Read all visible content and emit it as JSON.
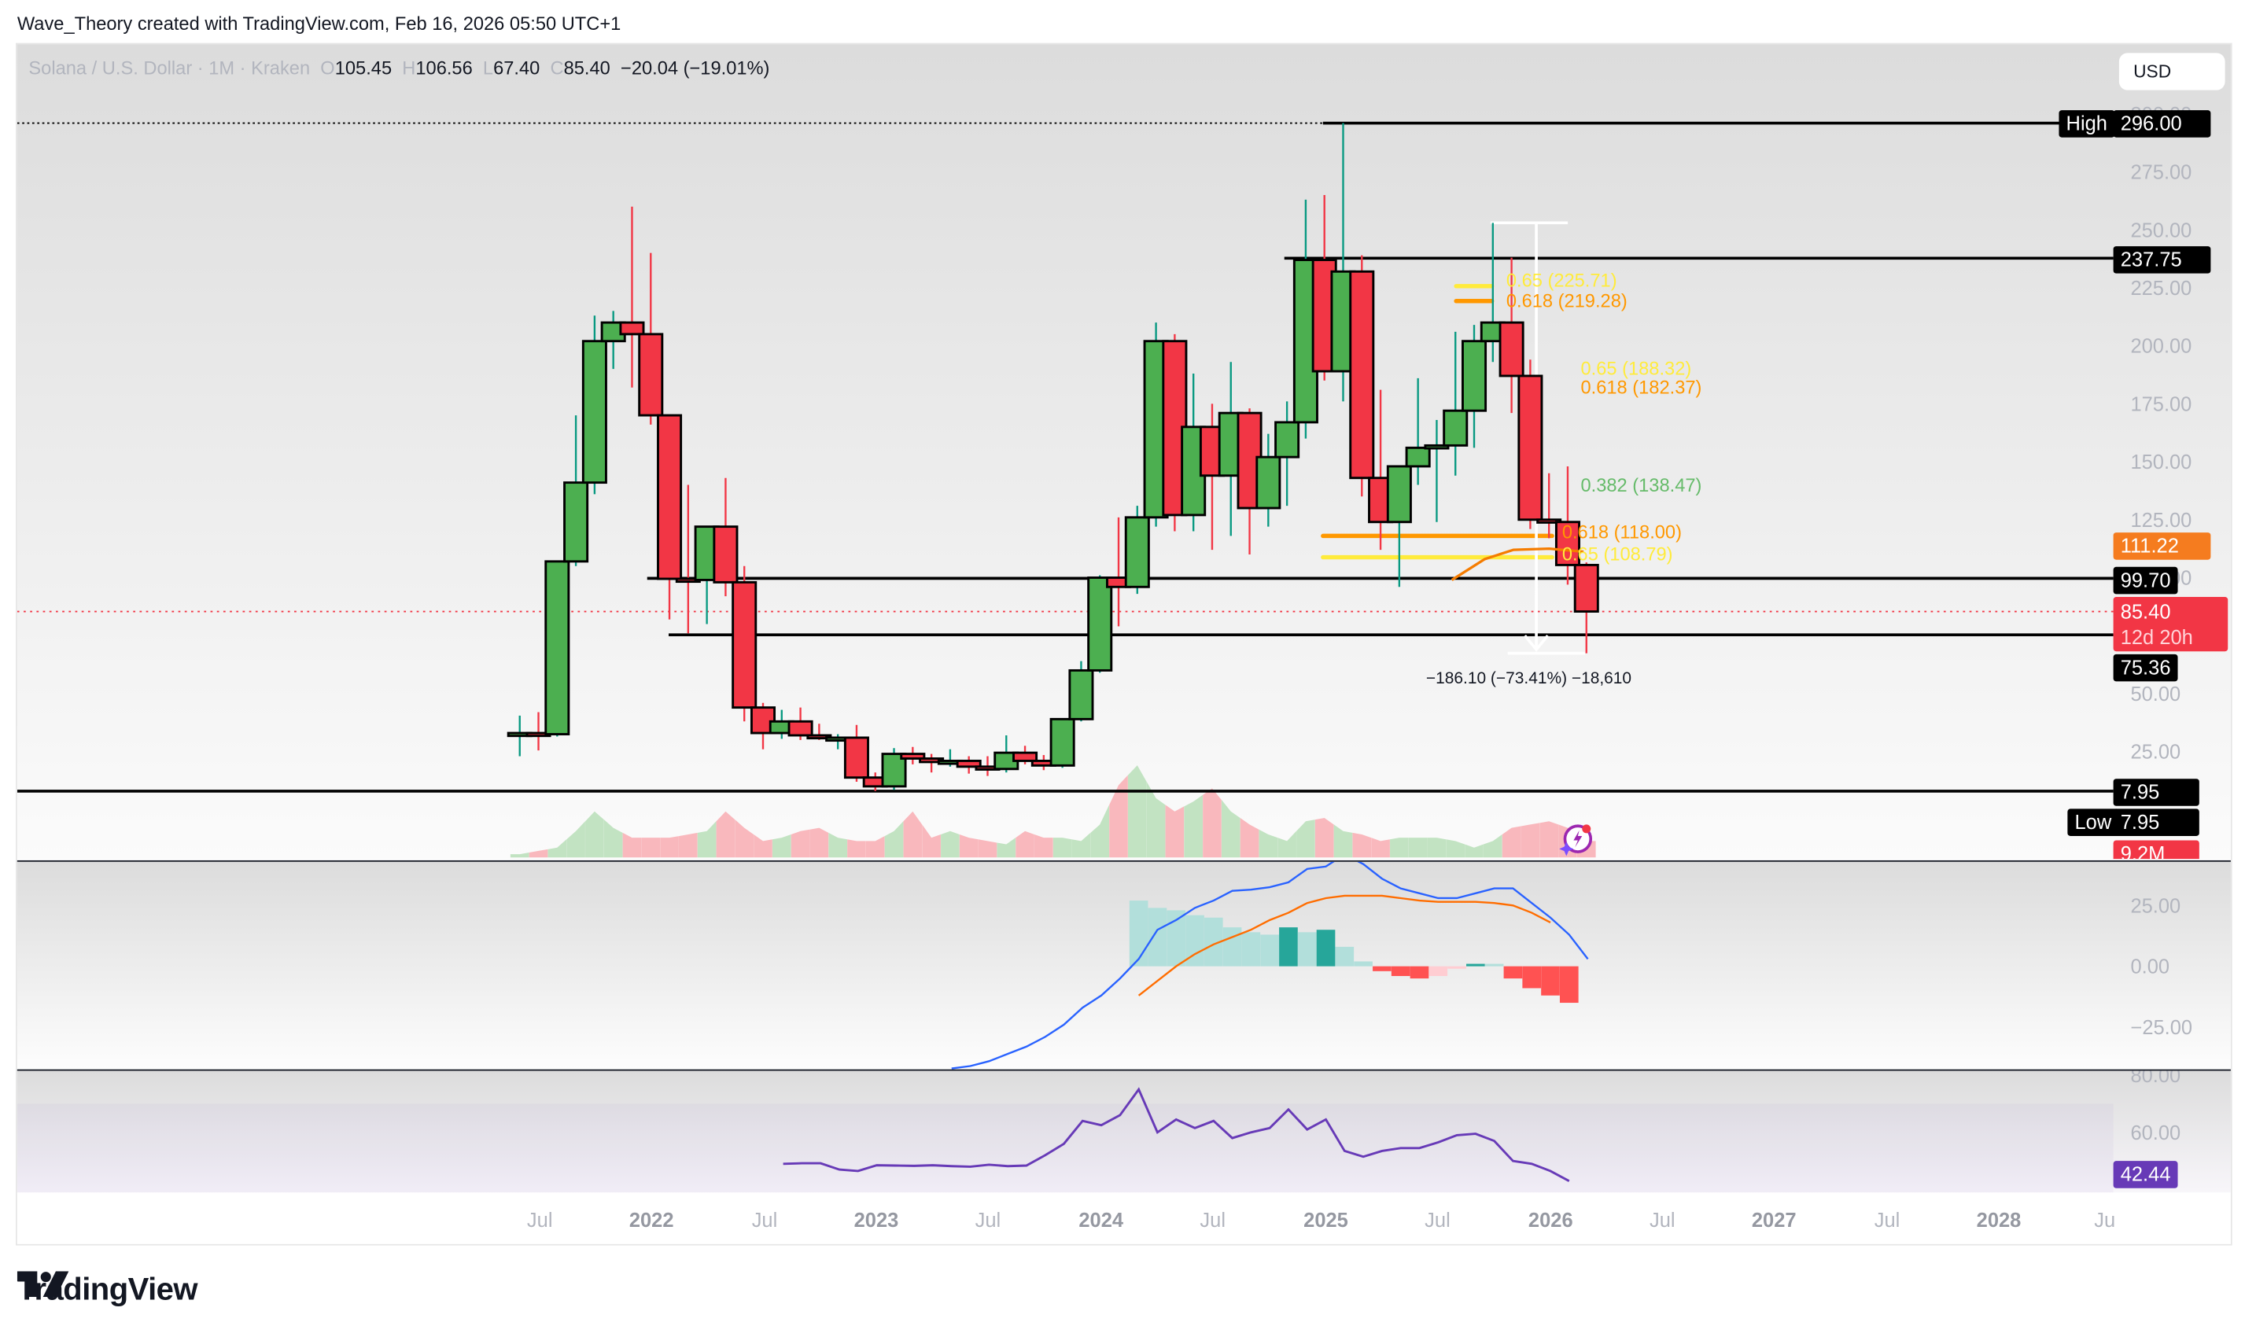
{
  "attribution": "Wave_Theory created with TradingView.com, Feb 16, 2026 05:50 UTC+1",
  "legend": {
    "symbol": "Solana / U.S. Dollar · 1M · Kraken",
    "o_label": "O",
    "o": "105.45",
    "h_label": "H",
    "h": "106.56",
    "l_label": "L",
    "l": "67.40",
    "c_label": "C",
    "c": "85.40",
    "change": "−20.04 (−19.01%)"
  },
  "currency_button": "USD",
  "price_axis": {
    "ticks": [
      "300.00",
      "275.00",
      "250.00",
      "225.00",
      "200.00",
      "175.00",
      "150.00",
      "125.00",
      "100.00",
      "75.00",
      "50.00",
      "25.00"
    ]
  },
  "price_badges": {
    "high_label": "High",
    "high_value": "296.00",
    "level_237": "237.75",
    "ema_value": "111.22",
    "level_99": "99.70",
    "last_price": "85.40",
    "countdown": "12d 20h",
    "level_75": "75.36",
    "level_7": "7.95",
    "low_label": "Low",
    "low_value": "7.95",
    "volume": "9.2M"
  },
  "fib_labels": {
    "upper_065": "0.65 (225.71)",
    "upper_0618": "0.618 (219.28)",
    "mid_065": "0.65 (188.32)",
    "mid_0618": "0.618 (182.37)",
    "fib_0382": "0.382 (138.47)",
    "lower_0618": "0.618 (118.00)",
    "lower_065": "0.65 (108.79)"
  },
  "measure_label": "−186.10 (−73.41%) −18,610",
  "macd_axis": {
    "ticks": [
      "25.00",
      "0.00",
      "−25.00"
    ]
  },
  "rsi_axis": {
    "ticks": [
      "80.00",
      "60.00"
    ],
    "value": "42.44"
  },
  "time_axis": {
    "labels": [
      {
        "text": "Jul",
        "year": false
      },
      {
        "text": "2022",
        "year": true
      },
      {
        "text": "Jul",
        "year": false
      },
      {
        "text": "2023",
        "year": true
      },
      {
        "text": "Jul",
        "year": false
      },
      {
        "text": "2024",
        "year": true
      },
      {
        "text": "Jul",
        "year": false
      },
      {
        "text": "2025",
        "year": true
      },
      {
        "text": "Jul",
        "year": false
      },
      {
        "text": "2026",
        "year": true
      },
      {
        "text": "Jul",
        "year": false
      },
      {
        "text": "2027",
        "year": true
      },
      {
        "text": "Jul",
        "year": false
      },
      {
        "text": "2028",
        "year": true
      },
      {
        "text": "Ju",
        "year": false
      }
    ]
  },
  "logo_text": "TradingView",
  "colors": {
    "up": "#4caf50",
    "down": "#f23645",
    "up_wick": "#089981",
    "down_wick": "#f23645",
    "fib_orange": "#ff9800",
    "fib_yellow": "#ffeb3b",
    "fib_green": "#66bb6a",
    "ema": "#f57c00",
    "macd": "#2962ff",
    "signal": "#ff6d00",
    "rsi": "#673ab7",
    "last_price": "#f23645",
    "ema_badge": "#f57c1f"
  },
  "chart_data": {
    "type": "candlestick",
    "title": "Solana / U.S. Dollar · 1M · Kraken",
    "xlabel": "",
    "ylabel": "USD",
    "ylim": [
      0,
      300
    ],
    "x_start": "2021-06",
    "interval": "1M",
    "candles": [
      [
        32.5,
        40.5,
        23.0,
        33.0
      ],
      [
        33.0,
        42.0,
        25.5,
        32.5
      ],
      [
        32.5,
        70.0,
        31.5,
        107.0
      ],
      [
        107.0,
        170.0,
        105.0,
        141.0
      ],
      [
        141.0,
        213.0,
        136.0,
        202.0
      ],
      [
        202.0,
        215.0,
        190.0,
        210.0
      ],
      [
        210.0,
        260.0,
        182.0,
        205.0
      ],
      [
        205.0,
        240.0,
        166.0,
        170.0
      ],
      [
        170.0,
        160.0,
        82.0,
        99.5
      ],
      [
        99.5,
        140.0,
        76.0,
        99.0
      ],
      [
        99.0,
        120.0,
        80.0,
        122.0
      ],
      [
        122.0,
        143.0,
        92.0,
        98.0
      ],
      [
        98.0,
        105.0,
        38.0,
        44.0
      ],
      [
        44.0,
        46.0,
        26.0,
        33.0
      ],
      [
        33.0,
        43.0,
        30.5,
        38.0
      ],
      [
        38.0,
        44.0,
        30.0,
        32.0
      ],
      [
        32.0,
        37.0,
        30.0,
        30.8
      ],
      [
        30.8,
        32.5,
        26.0,
        31.0
      ],
      [
        31.0,
        36.5,
        12.0,
        13.8
      ],
      [
        13.8,
        16.0,
        8.0,
        10.0
      ],
      [
        10.0,
        26.5,
        8.5,
        24.0
      ],
      [
        24.0,
        27.0,
        19.5,
        22.0
      ],
      [
        22.0,
        24.0,
        16.0,
        20.5
      ],
      [
        20.5,
        26.0,
        18.5,
        21.0
      ],
      [
        21.0,
        23.0,
        15.5,
        18.5
      ],
      [
        18.5,
        23.0,
        14.5,
        17.5
      ],
      [
        17.5,
        32.0,
        16.0,
        24.5
      ],
      [
        24.5,
        27.5,
        19.5,
        21.0
      ],
      [
        21.0,
        23.5,
        17.0,
        19.0
      ],
      [
        19.0,
        35.0,
        18.0,
        39.0
      ],
      [
        39.0,
        64.0,
        38.0,
        60.0
      ],
      [
        60.0,
        101.0,
        59.0,
        100.0
      ],
      [
        100.0,
        126.0,
        79.0,
        96.0
      ],
      [
        96.0,
        131.0,
        93.0,
        126.0
      ],
      [
        126.0,
        210.0,
        122.0,
        202.0
      ],
      [
        202.0,
        205.0,
        120.0,
        127.0
      ],
      [
        127.0,
        188.0,
        120.0,
        165.0
      ],
      [
        165.0,
        175.0,
        112.0,
        144.0
      ],
      [
        144.0,
        193.0,
        118.0,
        171.0
      ],
      [
        171.0,
        173.0,
        110.0,
        130.0
      ],
      [
        130.0,
        162.0,
        122.0,
        152.0
      ],
      [
        152.0,
        176.0,
        131.0,
        167.0
      ],
      [
        167.0,
        263.0,
        160.0,
        237.0
      ],
      [
        237.0,
        265.0,
        185.0,
        189.0
      ],
      [
        189.0,
        296.0,
        176.0,
        232.0
      ],
      [
        232.0,
        239.0,
        135.0,
        143.0
      ],
      [
        143.0,
        181.0,
        112.0,
        124.0
      ],
      [
        124.0,
        147.0,
        96.0,
        148.0
      ],
      [
        148.0,
        186.0,
        140.0,
        156.0
      ],
      [
        156.0,
        168.0,
        124.0,
        157.0
      ],
      [
        157.0,
        206.0,
        144.0,
        172.0
      ],
      [
        172.0,
        209.0,
        156.0,
        202.0
      ],
      [
        202.0,
        253.0,
        193.0,
        210.0
      ],
      [
        210.0,
        238.0,
        171.0,
        187.0
      ],
      [
        187.0,
        194.0,
        121.0,
        125.0
      ],
      [
        125.0,
        145.0,
        117.0,
        124.0
      ],
      [
        124.0,
        148.0,
        97.0,
        105.45
      ],
      [
        105.45,
        106.56,
        67.4,
        85.4
      ]
    ],
    "horizontal_levels": [
      296.0,
      237.75,
      99.7,
      75.36,
      7.95
    ],
    "fibonacci_levels": [
      {
        "ratio": 0.65,
        "price": 225.71
      },
      {
        "ratio": 0.618,
        "price": 219.28
      },
      {
        "ratio": 0.65,
        "price": 188.32
      },
      {
        "ratio": 0.618,
        "price": 182.37
      },
      {
        "ratio": 0.382,
        "price": 138.47
      },
      {
        "ratio": 0.618,
        "price": 118.0
      },
      {
        "ratio": 0.65,
        "price": 108.79
      }
    ],
    "ema_value": 111.22,
    "last_price": 85.4,
    "all_time_high": 296.0,
    "low": 7.95,
    "measure": {
      "change": -186.1,
      "percent": -73.41,
      "ticks": -18610
    },
    "volume_last": "9.2M",
    "macd": {
      "ylim": [
        -35,
        40
      ],
      "macd_line": [
        -42,
        -41,
        -39,
        -36,
        -33,
        -29,
        -24,
        -17,
        -12,
        -5,
        3,
        15,
        19,
        24,
        27,
        31,
        31.5,
        32.5,
        34.5,
        40,
        41,
        46,
        42,
        36,
        32,
        30,
        28,
        28,
        30,
        32,
        32,
        26,
        20,
        13,
        3
      ],
      "signal_line": [
        null,
        null,
        null,
        null,
        null,
        null,
        null,
        null,
        null,
        null,
        -12,
        -6,
        0,
        5,
        9,
        12,
        15,
        19,
        22,
        26,
        28,
        29,
        29,
        29,
        28,
        27,
        26.5,
        26.5,
        26.5,
        26,
        25,
        22,
        18
      ],
      "histogram": [
        27,
        24,
        23,
        21,
        20,
        16,
        14,
        13,
        16,
        14,
        15,
        8,
        2,
        -2,
        -4,
        -5,
        -4,
        -1,
        1,
        1,
        -5,
        -9,
        -12,
        -15
      ]
    },
    "rsi": {
      "ylim": [
        30,
        85
      ],
      "value": 42.44,
      "values": [
        49,
        49.2,
        49.2,
        47,
        46.5,
        48.5,
        48.4,
        48.3,
        48.5,
        48.2,
        48,
        48.7,
        48.2,
        48.4,
        52,
        56,
        64,
        62.5,
        66,
        75,
        60,
        64.5,
        61.5,
        64,
        58,
        60,
        61.5,
        68,
        61,
        64.5,
        53.5,
        51.5,
        53.5,
        54.5,
        54.5,
        56.5,
        59,
        59.5,
        57,
        50,
        49,
        46.5,
        43
      ]
    }
  }
}
